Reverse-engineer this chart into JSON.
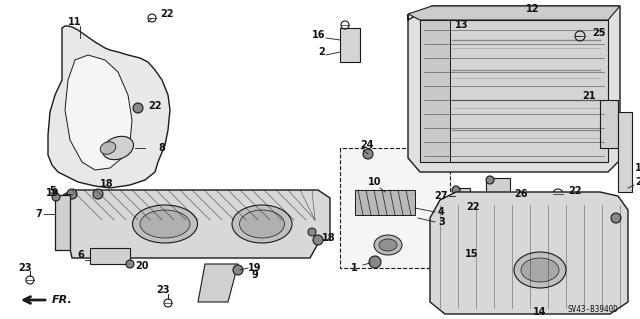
{
  "background_color": "#ffffff",
  "diagram_code": "SV43-B3940D",
  "fig_width": 6.4,
  "fig_height": 3.19,
  "dpi": 100,
  "line_color": "#1a1a1a",
  "text_color": "#111111",
  "gray_fill": "#c8c8c8",
  "dark_gray": "#888888",
  "mid_gray": "#aaaaaa"
}
